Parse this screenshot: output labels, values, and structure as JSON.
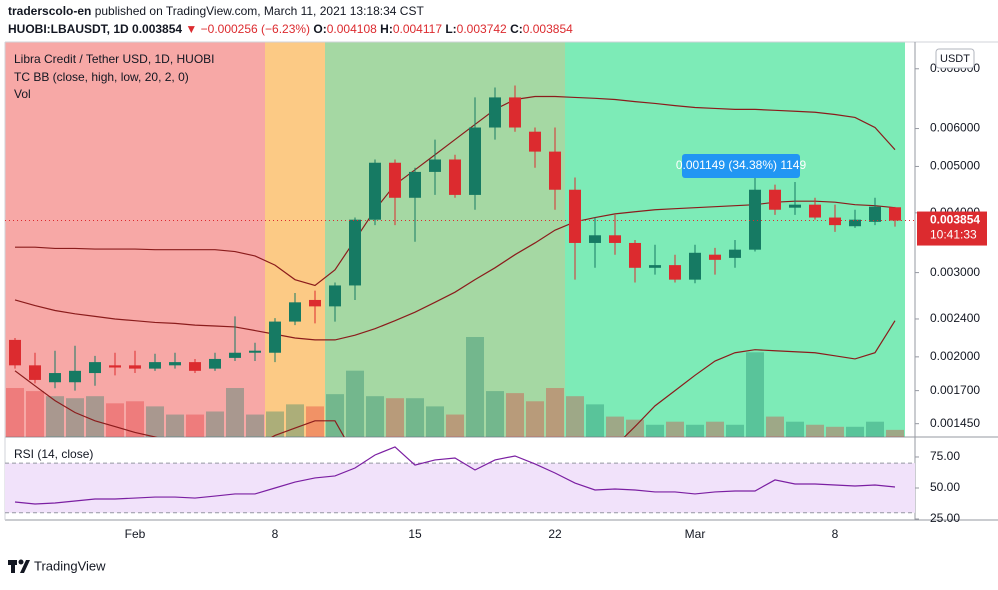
{
  "header": {
    "user": "traderscolo-en",
    "published": "published on TradingView.com, March 11, 2021 13:18:34 CST",
    "symbol": "HUOBI:LBAUSDT, 1D",
    "change": "▼ −0.000256 (−6.23%)",
    "o_label": "O:",
    "h_label": "H:",
    "l_label": "L:",
    "c_label": "C:"
  },
  "chart_data": {
    "type": "candlestick",
    "title": "Libra Credit / Tether USD, 1D, HUOBI",
    "categories": [
      null,
      null,
      null,
      null,
      null,
      null,
      "Feb",
      null,
      null,
      null,
      null,
      null,
      null,
      "8",
      null,
      null,
      null,
      null,
      null,
      null,
      "15",
      null,
      null,
      null,
      null,
      null,
      null,
      "22",
      null,
      null,
      null,
      null,
      null,
      null,
      "Mar",
      null,
      null,
      null,
      null,
      null,
      null,
      "8",
      null,
      null,
      null
    ],
    "open": [
      0.00217,
      0.00192,
      0.00177,
      0.00177,
      0.00185,
      0.00192,
      0.00192,
      0.00189,
      0.00192,
      0.00195,
      0.00189,
      0.00199,
      0.00204,
      0.00204,
      0.00237,
      0.00263,
      0.00255,
      0.00282,
      0.00387,
      0.00509,
      0.0043,
      0.00487,
      0.00517,
      0.00436,
      0.00603,
      0.00697,
      0.00591,
      0.00537,
      0.00447,
      0.00346,
      0.00359,
      0.00346,
      0.00307,
      0.00311,
      0.0029,
      0.00327,
      0.00322,
      0.00335,
      0.00447,
      0.0041,
      0.00416,
      0.00391,
      0.00375,
      0.00383,
      0.004108
    ],
    "high": [
      0.00219,
      0.00204,
      0.00206,
      0.00211,
      0.00201,
      0.00204,
      0.00206,
      0.00203,
      0.00204,
      0.00198,
      0.00204,
      0.00243,
      0.00214,
      0.00241,
      0.00272,
      0.00275,
      0.00286,
      0.00391,
      0.00517,
      0.00517,
      0.00497,
      0.00569,
      0.00529,
      0.00697,
      0.00731,
      0.00738,
      0.00603,
      0.00603,
      0.00474,
      0.00391,
      0.00396,
      0.00351,
      0.00343,
      0.00327,
      0.00343,
      0.00338,
      0.00351,
      0.00497,
      0.00458,
      0.00464,
      0.0043,
      0.00416,
      0.00406,
      0.0043,
      0.004117
    ],
    "low": [
      0.00189,
      0.00176,
      0.00172,
      0.0017,
      0.00174,
      0.00183,
      0.00185,
      0.00187,
      0.00189,
      0.00185,
      0.00187,
      0.00196,
      0.00196,
      0.00195,
      0.00233,
      0.00235,
      0.00237,
      0.00263,
      0.00377,
      0.00377,
      0.00348,
      0.00436,
      0.0043,
      0.00406,
      0.00569,
      0.00591,
      0.00497,
      0.00406,
      0.0029,
      0.00307,
      0.00327,
      0.00286,
      0.00297,
      0.00286,
      0.00285,
      0.00297,
      0.00307,
      0.00332,
      0.00396,
      0.00396,
      0.00387,
      0.00365,
      0.00372,
      0.00377,
      0.003742
    ],
    "close": [
      0.00192,
      0.00179,
      0.00185,
      0.00187,
      0.00195,
      0.0019,
      0.00189,
      0.00195,
      0.00195,
      0.00187,
      0.00198,
      0.00204,
      0.00206,
      0.00237,
      0.0026,
      0.00255,
      0.00282,
      0.00387,
      0.00509,
      0.0043,
      0.00487,
      0.00517,
      0.00436,
      0.00603,
      0.00697,
      0.00603,
      0.00537,
      0.00447,
      0.00346,
      0.00359,
      0.00346,
      0.00307,
      0.00311,
      0.0029,
      0.0033,
      0.00319,
      0.00335,
      0.00447,
      0.00406,
      0.00416,
      0.00391,
      0.00377,
      0.00387,
      0.00412,
      0.003854
    ],
    "volume_name": "Vol",
    "volume": [
      48,
      45,
      40,
      38,
      40,
      33,
      35,
      30,
      22,
      22,
      25,
      48,
      22,
      25,
      32,
      30,
      42,
      65,
      40,
      38,
      38,
      30,
      22,
      98,
      45,
      43,
      35,
      48,
      40,
      32,
      20,
      17,
      12,
      15,
      12,
      15,
      12,
      83,
      20,
      15,
      12,
      10,
      10,
      15,
      7
    ],
    "up_color": "#167a63",
    "down_color": "#dc2b2f",
    "ylim": [
      0.00136,
      0.0091
    ],
    "log": true,
    "yticks": [
      {
        "value": 0.008,
        "label": "0.008000"
      },
      {
        "value": 0.006,
        "label": "0.006000"
      },
      {
        "value": 0.005,
        "label": "0.005000"
      },
      {
        "value": 0.004,
        "label": "0.004000"
      },
      {
        "value": 0.003,
        "label": "0.003000"
      },
      {
        "value": 0.0024,
        "label": "0.002400"
      },
      {
        "value": 0.002,
        "label": "0.002000"
      },
      {
        "value": 0.0017,
        "label": "0.001700"
      },
      {
        "value": 0.00145,
        "label": "0.001450"
      }
    ],
    "currency": "USDT",
    "countdown": "10:41:33",
    "annotation": "0.001149 (34.38%) 1149",
    "bands": {
      "name": "TC BB (close, high, low, 20, 2, 0)",
      "color": "#8b1c1c",
      "upper": [
        0.00339,
        0.00339,
        0.00337,
        0.00337,
        0.00336,
        0.00336,
        0.00336,
        0.00335,
        0.00335,
        0.00335,
        0.00335,
        0.00332,
        0.00325,
        0.00311,
        0.0029,
        0.00282,
        0.00304,
        0.00351,
        0.00406,
        0.00458,
        0.00492,
        0.00529,
        0.00569,
        0.00612,
        0.00658,
        0.0069,
        0.007,
        0.007,
        0.00697,
        0.00694,
        0.0069,
        0.00683,
        0.00677,
        0.0067,
        0.00664,
        0.00661,
        0.00658,
        0.00658,
        0.00655,
        0.00652,
        0.00649,
        0.00642,
        0.00633,
        0.00603,
        0.00542
      ],
      "basis": [
        0.00263,
        0.00256,
        0.0025,
        0.00246,
        0.00243,
        0.0024,
        0.00238,
        0.00236,
        0.00235,
        0.00233,
        0.00232,
        0.00231,
        0.00227,
        0.00223,
        0.00219,
        0.00217,
        0.00217,
        0.00222,
        0.00229,
        0.00238,
        0.00248,
        0.0026,
        0.00273,
        0.0029,
        0.00307,
        0.00327,
        0.00346,
        0.00368,
        0.00383,
        0.00391,
        0.00398,
        0.00402,
        0.00406,
        0.00408,
        0.0041,
        0.00412,
        0.00414,
        0.00416,
        0.00421,
        0.00423,
        0.00423,
        0.00421,
        0.00416,
        0.00414,
        0.0041
      ],
      "lower": [
        0.00187,
        0.00174,
        0.00162,
        0.00153,
        0.00147,
        0.00143,
        0.00139,
        0.00136,
        0.00133,
        0.0013,
        0.00127,
        0.00127,
        0.0013,
        0.00137,
        0.00142,
        0.00147,
        0.00147,
        0.00124,
        0.00116,
        0.00108,
        0.001,
        0.00098,
        0.00095,
        0.00095,
        0.00098,
        0.001,
        0.00105,
        0.0011,
        0.00116,
        0.00121,
        0.0013,
        0.00143,
        0.00158,
        0.0017,
        0.00183,
        0.00196,
        0.00204,
        0.00207,
        0.00206,
        0.00205,
        0.00204,
        0.00201,
        0.00198,
        0.00204,
        0.00238
      ]
    },
    "rsi": {
      "name": "RSI (14, close)",
      "color": "#7b1fa2",
      "ylim": [
        24.2,
        91.1
      ],
      "band": [
        30,
        70
      ],
      "yticks": [
        {
          "value": 75,
          "label": "75.00"
        },
        {
          "value": 50,
          "label": "50.00"
        },
        {
          "value": 25,
          "label": "25.00"
        }
      ],
      "values": [
        38.7,
        37.1,
        37.9,
        39.5,
        41.1,
        41.1,
        41.9,
        42.7,
        42.7,
        41.9,
        43.5,
        45.2,
        45.2,
        50,
        54.8,
        58.1,
        59.7,
        66.1,
        76.6,
        83.1,
        68.5,
        72.6,
        74.2,
        64.5,
        72.6,
        75.8,
        69.4,
        62.1,
        54,
        48.4,
        49.2,
        48.4,
        46.8,
        46.8,
        45.2,
        46.8,
        47.6,
        47.6,
        56.5,
        53.2,
        53.2,
        52.4,
        51.6,
        52.4,
        50.8
      ]
    }
  },
  "footer": {
    "brand": "TradingView"
  }
}
